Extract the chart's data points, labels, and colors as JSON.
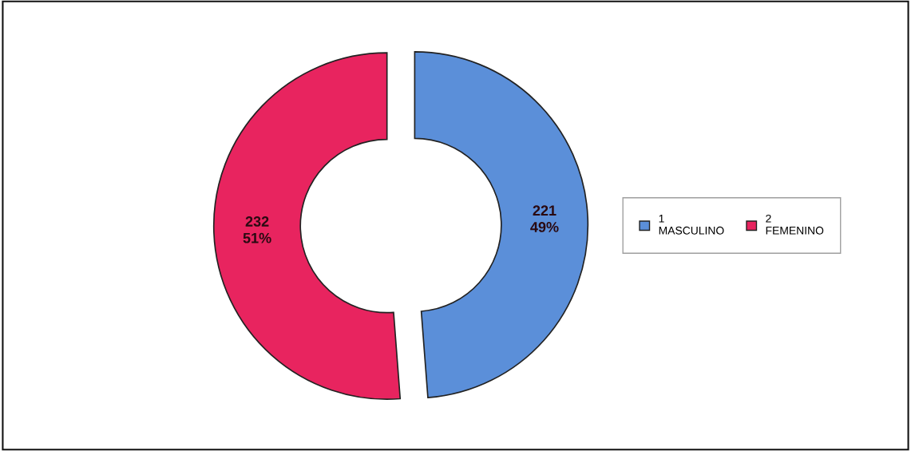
{
  "chart_data": {
    "type": "donut",
    "categories": [
      "1\nMASCULINO",
      "2\nFEMENINO"
    ],
    "values": [
      221,
      232
    ],
    "colors": [
      "#5b8fd9",
      "#e8245f"
    ],
    "value_labels": [
      "221\n49%",
      "232\n51%"
    ],
    "legend": "right"
  }
}
